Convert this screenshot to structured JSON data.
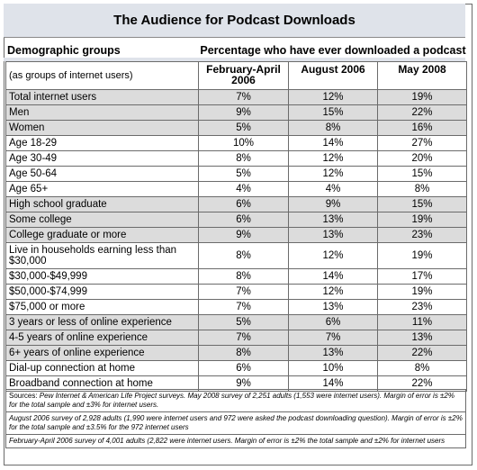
{
  "title": "The Audience for Podcast Downloads",
  "column_group_header": "Demographic groups",
  "percentage_header": "Percentage who have ever downloaded a podcast",
  "subheader_label": "(as groups of internet users)",
  "period_headers": [
    "February-April 2006",
    "August 2006",
    "May 2008"
  ],
  "rows": [
    {
      "label": "Total internet users",
      "values": [
        "7%",
        "12%",
        "19%"
      ],
      "shaded": true
    },
    {
      "label": "Men",
      "values": [
        "9%",
        "15%",
        "22%"
      ],
      "shaded": true
    },
    {
      "label": "Women",
      "values": [
        "5%",
        "8%",
        "16%"
      ],
      "shaded": true
    },
    {
      "label": "Age 18-29",
      "values": [
        "10%",
        "14%",
        "27%"
      ],
      "shaded": false
    },
    {
      "label": "Age 30-49",
      "values": [
        "8%",
        "12%",
        "20%"
      ],
      "shaded": false
    },
    {
      "label": "Age 50-64",
      "values": [
        "5%",
        "12%",
        "15%"
      ],
      "shaded": false
    },
    {
      "label": "Age 65+",
      "values": [
        "4%",
        "4%",
        "8%"
      ],
      "shaded": false
    },
    {
      "label": "High school graduate",
      "values": [
        "6%",
        "9%",
        "15%"
      ],
      "shaded": true
    },
    {
      "label": "Some college",
      "values": [
        "6%",
        "13%",
        "19%"
      ],
      "shaded": true
    },
    {
      "label": "College graduate or more",
      "values": [
        "9%",
        "13%",
        "23%"
      ],
      "shaded": true
    },
    {
      "label": "Live in households earning less than $30,000",
      "values": [
        "8%",
        "12%",
        "19%"
      ],
      "shaded": false,
      "tall": true
    },
    {
      "label": "$30,000-$49,999",
      "values": [
        "8%",
        "14%",
        "17%"
      ],
      "shaded": false
    },
    {
      "label": "$50,000-$74,999",
      "values": [
        "7%",
        "12%",
        "19%"
      ],
      "shaded": false
    },
    {
      "label": "$75,000 or more",
      "values": [
        "7%",
        "13%",
        "23%"
      ],
      "shaded": false
    },
    {
      "label": "3 years or less of online experience",
      "values": [
        "5%",
        "6%",
        "11%"
      ],
      "shaded": true
    },
    {
      "label": "4-5 years of online experience",
      "values": [
        "7%",
        "7%",
        "13%"
      ],
      "shaded": true
    },
    {
      "label": "6+ years of online experience",
      "values": [
        "8%",
        "13%",
        "22%"
      ],
      "shaded": true
    },
    {
      "label": "Dial-up connection at home",
      "values": [
        "6%",
        "10%",
        "8%"
      ],
      "shaded": false
    },
    {
      "label": "Broadband connection at home",
      "values": [
        "9%",
        "14%",
        "22%"
      ],
      "shaded": false
    }
  ],
  "notes": {
    "source_prefix": "Sources:",
    "source_text": " Pew Internet & American Life Project surveys. May 2008 survey of 2,251 adults (1,553 were internet users). Margin of error is ±2% for the total sample and ±3% for internet users.",
    "aug2006": "August 2006 survey of 2,928 adults (1,990 were internet users and 972 were asked the podcast downloading question). Margin of error is ±2% for the total sample and ±3.5% for the 972 internet users",
    "feb2006": "February-April 2006 survey of 4,001 adults (2,822 were internet users. Margin of error is ±2% the total sample and ±2% for internet users"
  }
}
